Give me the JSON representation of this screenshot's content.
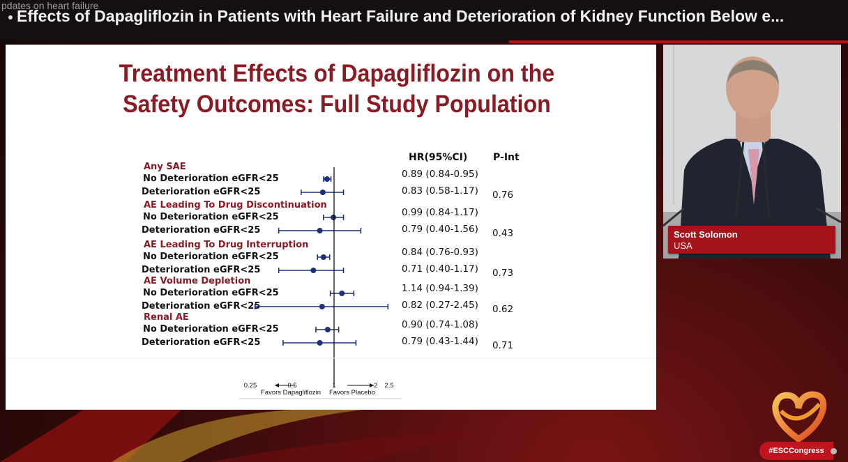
{
  "player": {
    "ticker_text": "pdates on heart failure",
    "session_title": "Effects of Dapagliflozin in Patients with Heart Failure and Deterioration of Kidney Function Below e..."
  },
  "slide": {
    "title_line1": "Treatment Effects of Dapagliflozin on the",
    "title_line2": "Safety Outcomes: Full Study Population",
    "col_hr": "HR(95%CI)",
    "col_pint": "P-Int",
    "axis_note_left": "Favors Dapagliflozin",
    "axis_note_right": "Favors Placebo",
    "colors": {
      "title": "#8a1b25",
      "marker": "#1f2f7a",
      "category": "#8a1b25"
    }
  },
  "chart_data": {
    "type": "forest",
    "xscale": "log",
    "xlim": [
      0.25,
      2.5
    ],
    "reference_line": 1,
    "xticks": [
      0.25,
      0.5,
      1,
      2,
      2.5
    ],
    "xtick_labels": [
      "0.25",
      "0.5",
      "1",
      "2",
      "2.5"
    ],
    "groups": [
      {
        "label": "Any SAE",
        "p_int": "0.76",
        "rows": [
          {
            "label": "No Deterioration eGFR<25",
            "hr": 0.89,
            "lo": 0.84,
            "hi": 0.95,
            "text": "0.89 (0.84-0.95)"
          },
          {
            "label": "Deterioration eGFR<25",
            "hr": 0.83,
            "lo": 0.58,
            "hi": 1.17,
            "text": "0.83 (0.58-1.17)"
          }
        ]
      },
      {
        "label": "AE Leading To Drug Discontinuation",
        "p_int": "0.43",
        "rows": [
          {
            "label": "No Deterioration eGFR<25",
            "hr": 0.99,
            "lo": 0.84,
            "hi": 1.17,
            "text": "0.99 (0.84-1.17)"
          },
          {
            "label": "Deterioration eGFR<25",
            "hr": 0.79,
            "lo": 0.4,
            "hi": 1.56,
            "text": "0.79 (0.40-1.56)"
          }
        ]
      },
      {
        "label": "AE Leading To Drug Interruption",
        "p_int": "0.73",
        "rows": [
          {
            "label": "No Deterioration eGFR<25",
            "hr": 0.84,
            "lo": 0.76,
            "hi": 0.93,
            "text": "0.84 (0.76-0.93)"
          },
          {
            "label": "Deterioration eGFR<25",
            "hr": 0.71,
            "lo": 0.4,
            "hi": 1.17,
            "text": "0.71 (0.40-1.17)"
          }
        ]
      },
      {
        "label": "AE Volume Depletion",
        "p_int": "0.62",
        "rows": [
          {
            "label": "No Deterioration eGFR<25",
            "hr": 1.14,
            "lo": 0.94,
            "hi": 1.39,
            "text": "1.14 (0.94-1.39)"
          },
          {
            "label": "Deterioration eGFR<25",
            "hr": 0.82,
            "lo": 0.27,
            "hi": 2.45,
            "text": "0.82 (0.27-2.45)"
          }
        ]
      },
      {
        "label": "Renal AE",
        "p_int": "0.71",
        "rows": [
          {
            "label": "No Deterioration eGFR<25",
            "hr": 0.9,
            "lo": 0.74,
            "hi": 1.08,
            "text": "0.90 (0.74-1.08)"
          },
          {
            "label": "Deterioration eGFR<25",
            "hr": 0.79,
            "lo": 0.43,
            "hi": 1.44,
            "text": "0.79 (0.43-1.44)"
          }
        ]
      }
    ]
  },
  "speaker": {
    "name": "Scott Solomon",
    "country": "USA"
  },
  "branding": {
    "hashtag": "#ESCCongress"
  }
}
